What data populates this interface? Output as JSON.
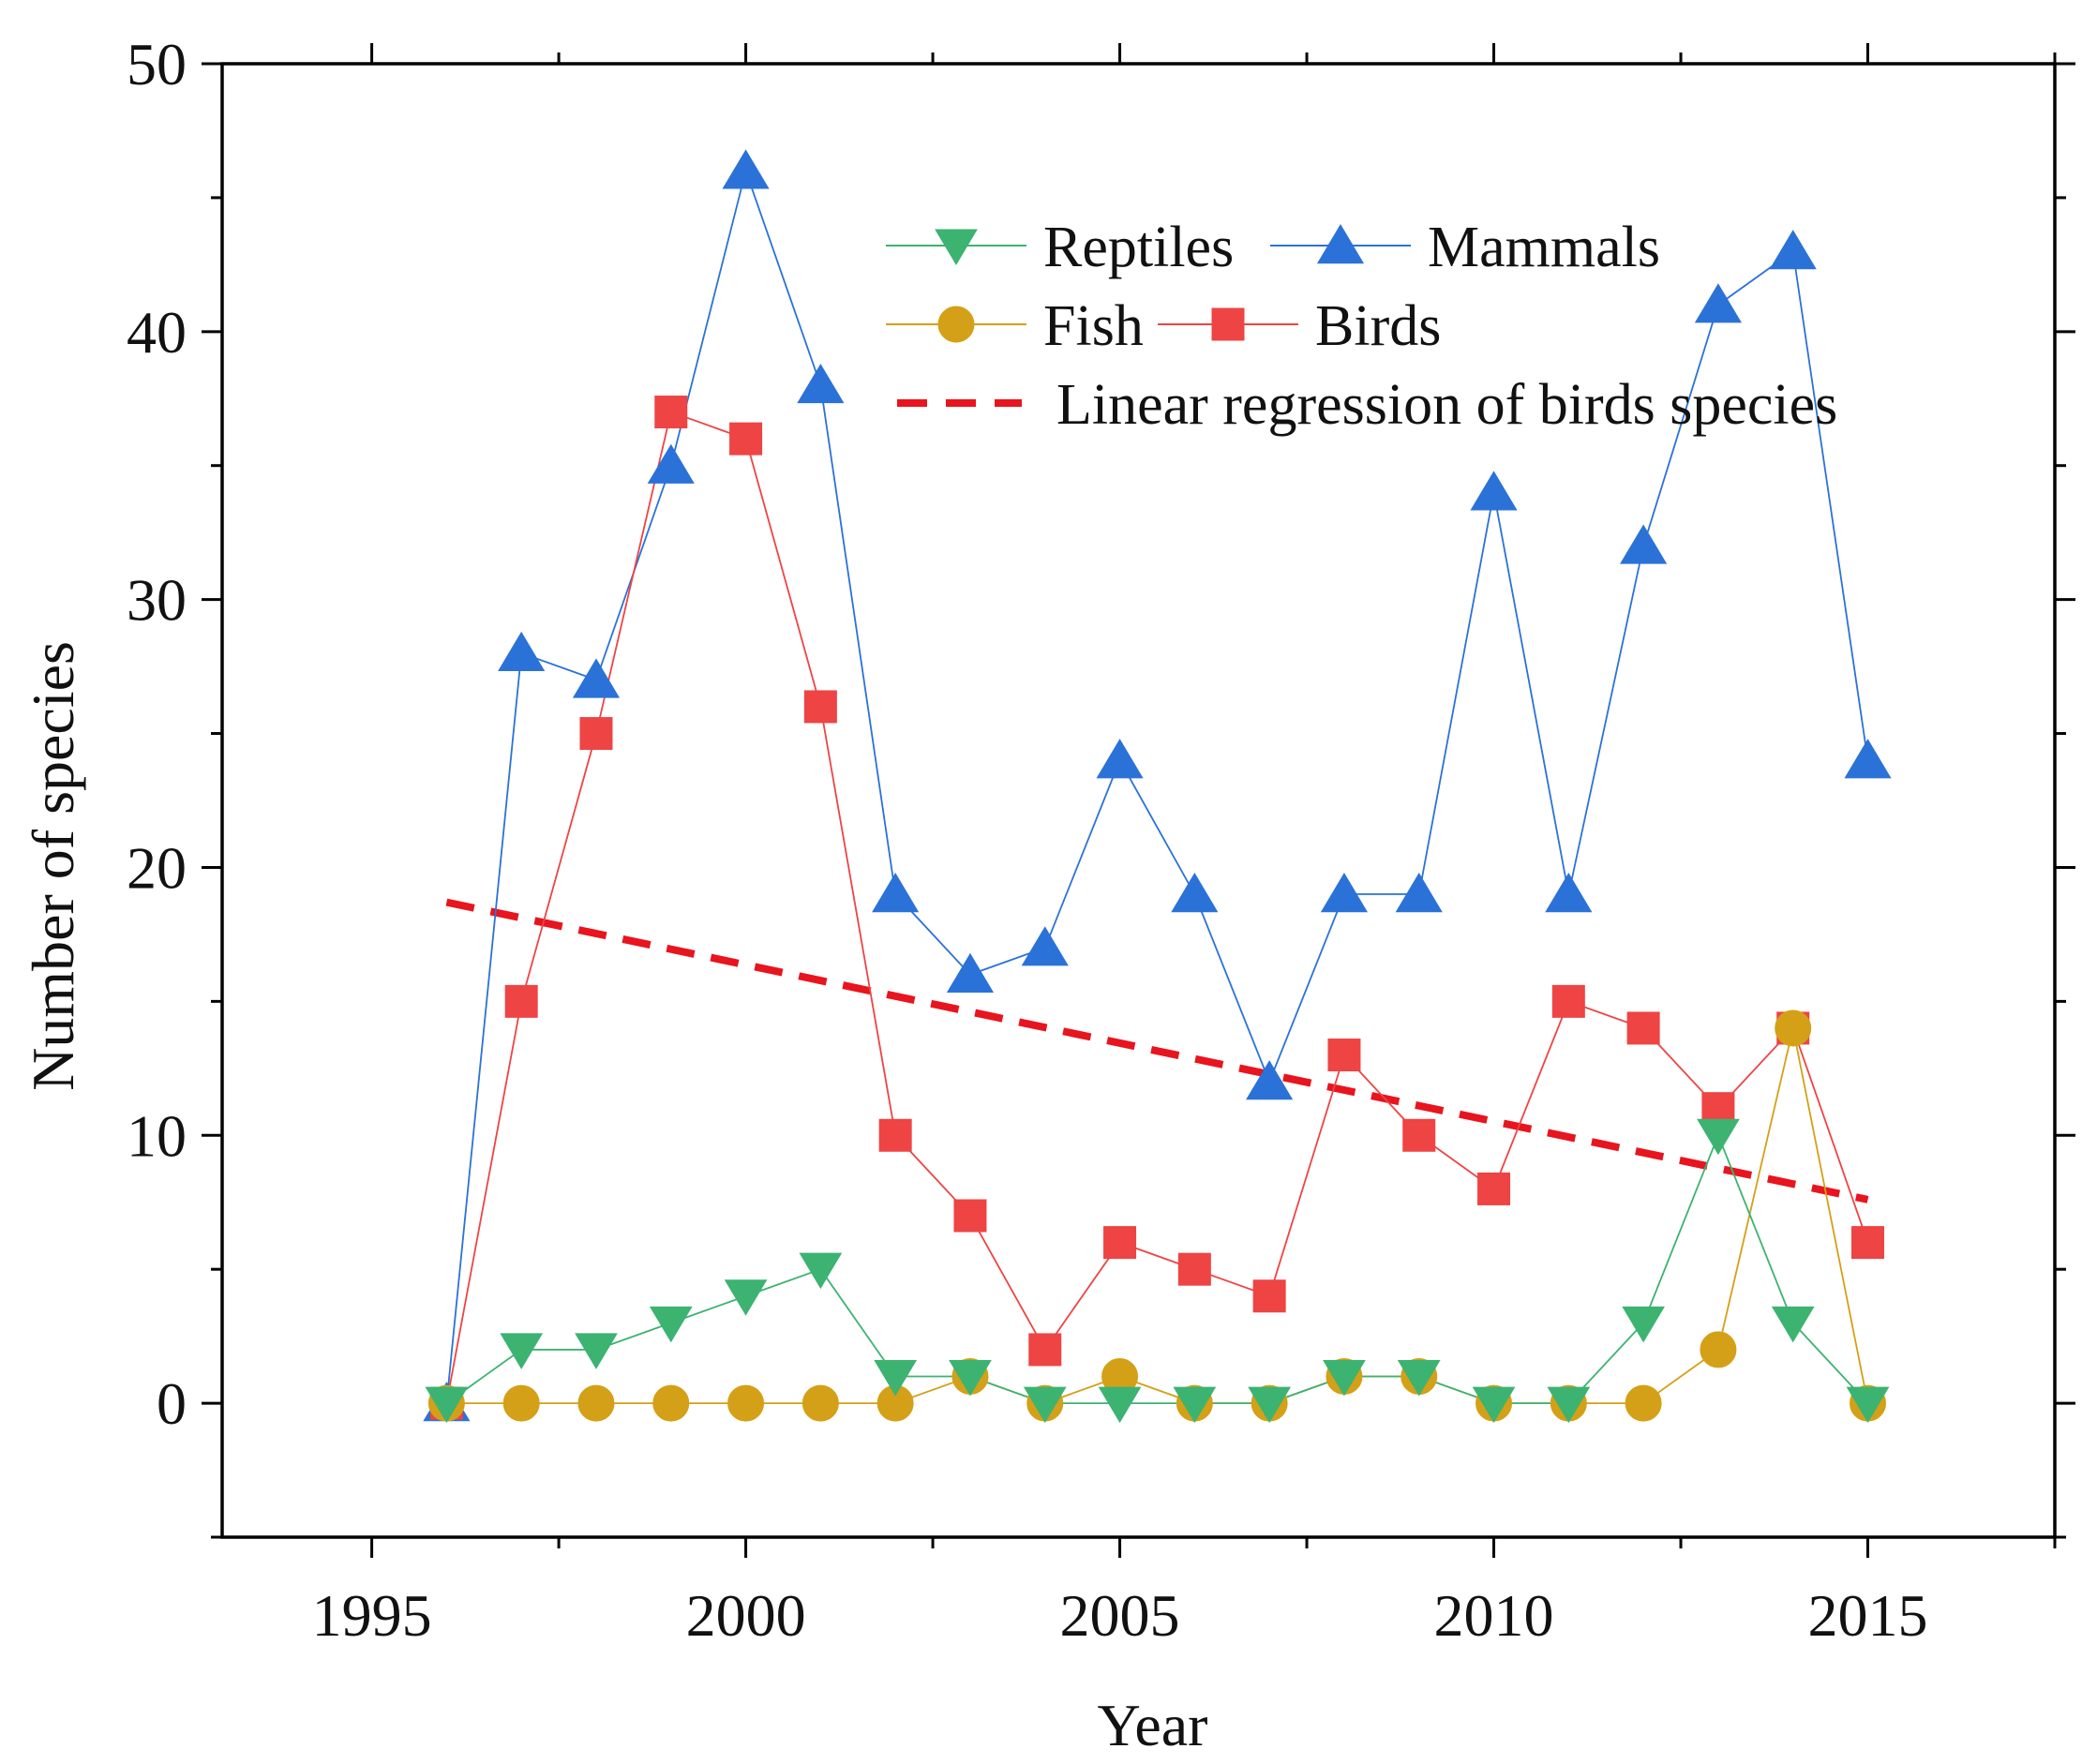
{
  "chart_data": {
    "type": "line",
    "title": "",
    "xlabel": "Year",
    "ylabel": "Number of species",
    "xlim": [
      1993,
      2017.5
    ],
    "ylim": [
      -5,
      50
    ],
    "xticks": [
      1995,
      2000,
      2005,
      2010,
      2015
    ],
    "yticks": [
      0,
      10,
      20,
      30,
      40,
      50
    ],
    "x": [
      1996,
      1997,
      1998,
      1999,
      2000,
      2001,
      2002,
      2003,
      2004,
      2005,
      2006,
      2007,
      2008,
      2009,
      2010,
      2011,
      2012,
      2013,
      2014,
      2015
    ],
    "series": [
      {
        "name": "Reptiles",
        "marker": "triangle-down",
        "color": "#3cb371",
        "values": [
          0,
          2,
          2,
          3,
          4,
          5,
          1,
          1,
          0,
          0,
          0,
          0,
          1,
          1,
          0,
          0,
          3,
          10,
          3,
          0
        ]
      },
      {
        "name": "Mammals",
        "marker": "triangle-up",
        "color": "#2b72d8",
        "values": [
          0,
          28,
          27,
          35,
          46,
          38,
          19,
          16,
          17,
          24,
          19,
          12,
          19,
          19,
          34,
          19,
          32,
          41,
          43,
          24
        ]
      },
      {
        "name": "Fish",
        "marker": "circle",
        "color": "#d4a017",
        "values": [
          0,
          0,
          0,
          0,
          0,
          0,
          0,
          1,
          0,
          1,
          0,
          0,
          1,
          1,
          0,
          0,
          0,
          2,
          14,
          0
        ]
      },
      {
        "name": "Birds",
        "marker": "square",
        "color": "#ee4444",
        "values": [
          0,
          15,
          25,
          37,
          36,
          26,
          10,
          7,
          2,
          6,
          5,
          4,
          13,
          10,
          8,
          15,
          14,
          11,
          14,
          6
        ]
      }
    ],
    "regression": {
      "name": "Linear regression of birds species",
      "color": "#e8141e",
      "x": [
        1996,
        2015
      ],
      "y": [
        18.7,
        7.6
      ]
    },
    "legend_position": "top-right",
    "grid": false
  }
}
